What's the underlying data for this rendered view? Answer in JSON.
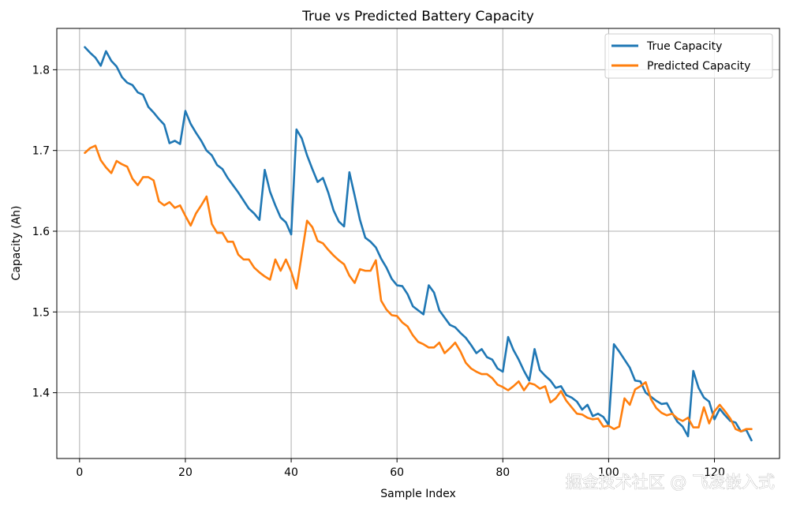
{
  "chart_data": {
    "type": "line",
    "title": "True vs Predicted Battery Capacity",
    "xlabel": "Sample Index",
    "ylabel": "Capacity (Ah)",
    "xlim": [
      -4.3,
      132.3
    ],
    "ylim": [
      1.3185,
      1.8512
    ],
    "x_ticks": [
      0,
      20,
      40,
      60,
      80,
      100,
      120
    ],
    "y_ticks": [
      1.4,
      1.5,
      1.6,
      1.7,
      1.8
    ],
    "x_tick_labels": [
      "0",
      "20",
      "40",
      "60",
      "80",
      "100",
      "120"
    ],
    "y_tick_labels": [
      "1.4",
      "1.5",
      "1.6",
      "1.7",
      "1.8"
    ],
    "grid": true,
    "legend_position": "top-right",
    "x": [
      1,
      2,
      3,
      4,
      5,
      6,
      7,
      8,
      9,
      10,
      11,
      12,
      13,
      14,
      15,
      16,
      17,
      18,
      19,
      20,
      21,
      22,
      23,
      24,
      25,
      26,
      27,
      28,
      29,
      30,
      31,
      32,
      33,
      34,
      35,
      36,
      37,
      38,
      39,
      40,
      41,
      42,
      43,
      44,
      45,
      46,
      47,
      48,
      49,
      50,
      51,
      52,
      53,
      54,
      55,
      56,
      57,
      58,
      59,
      60,
      61,
      62,
      63,
      64,
      65,
      66,
      67,
      68,
      69,
      70,
      71,
      72,
      73,
      74,
      75,
      76,
      77,
      78,
      79,
      80,
      81,
      82,
      83,
      84,
      85,
      86,
      87,
      88,
      89,
      90,
      91,
      92,
      93,
      94,
      95,
      96,
      97,
      98,
      99,
      100,
      101,
      102,
      103,
      104,
      105,
      106,
      107,
      108,
      109,
      110,
      111,
      112,
      113,
      114,
      115,
      116,
      117,
      118,
      119,
      120,
      121,
      122,
      123,
      124,
      125,
      126,
      127
    ],
    "series": [
      {
        "name": "True Capacity",
        "color": "#1f77b4",
        "values": [
          1.828,
          1.821,
          1.815,
          1.805,
          1.823,
          1.811,
          1.804,
          1.791,
          1.784,
          1.781,
          1.772,
          1.769,
          1.754,
          1.747,
          1.739,
          1.732,
          1.709,
          1.712,
          1.708,
          1.749,
          1.733,
          1.722,
          1.712,
          1.7,
          1.694,
          1.682,
          1.677,
          1.666,
          1.657,
          1.648,
          1.638,
          1.628,
          1.622,
          1.614,
          1.676,
          1.649,
          1.632,
          1.617,
          1.611,
          1.596,
          1.726,
          1.715,
          1.694,
          1.677,
          1.661,
          1.666,
          1.648,
          1.626,
          1.612,
          1.606,
          1.673,
          1.644,
          1.614,
          1.592,
          1.587,
          1.58,
          1.566,
          1.555,
          1.541,
          1.533,
          1.532,
          1.522,
          1.507,
          1.502,
          1.497,
          1.533,
          1.524,
          1.502,
          1.493,
          1.484,
          1.481,
          1.474,
          1.468,
          1.459,
          1.449,
          1.454,
          1.444,
          1.441,
          1.43,
          1.426,
          1.469,
          1.453,
          1.441,
          1.427,
          1.415,
          1.454,
          1.428,
          1.421,
          1.415,
          1.406,
          1.408,
          1.397,
          1.394,
          1.389,
          1.379,
          1.385,
          1.371,
          1.374,
          1.37,
          1.36,
          1.46,
          1.451,
          1.441,
          1.431,
          1.415,
          1.414,
          1.4,
          1.395,
          1.39,
          1.386,
          1.387,
          1.375,
          1.364,
          1.358,
          1.346,
          1.427,
          1.406,
          1.394,
          1.389,
          1.367,
          1.38,
          1.372,
          1.365,
          1.363,
          1.352,
          1.354,
          1.341
        ]
      },
      {
        "name": "Predicted Capacity",
        "color": "#ff7f0e",
        "values": [
          1.697,
          1.703,
          1.706,
          1.688,
          1.679,
          1.672,
          1.687,
          1.683,
          1.68,
          1.665,
          1.657,
          1.667,
          1.667,
          1.663,
          1.637,
          1.632,
          1.636,
          1.629,
          1.632,
          1.619,
          1.607,
          1.622,
          1.632,
          1.643,
          1.609,
          1.598,
          1.598,
          1.587,
          1.587,
          1.571,
          1.565,
          1.565,
          1.555,
          1.549,
          1.544,
          1.54,
          1.565,
          1.551,
          1.565,
          1.55,
          1.529,
          1.571,
          1.613,
          1.605,
          1.588,
          1.585,
          1.577,
          1.57,
          1.564,
          1.559,
          1.545,
          1.536,
          1.553,
          1.551,
          1.551,
          1.564,
          1.514,
          1.503,
          1.496,
          1.495,
          1.487,
          1.482,
          1.471,
          1.463,
          1.46,
          1.456,
          1.456,
          1.462,
          1.449,
          1.455,
          1.462,
          1.451,
          1.437,
          1.43,
          1.426,
          1.423,
          1.423,
          1.418,
          1.41,
          1.407,
          1.403,
          1.408,
          1.414,
          1.403,
          1.412,
          1.41,
          1.405,
          1.408,
          1.388,
          1.393,
          1.402,
          1.39,
          1.382,
          1.374,
          1.373,
          1.369,
          1.367,
          1.368,
          1.358,
          1.359,
          1.355,
          1.358,
          1.393,
          1.385,
          1.404,
          1.408,
          1.413,
          1.392,
          1.381,
          1.375,
          1.372,
          1.374,
          1.368,
          1.365,
          1.369,
          1.357,
          1.357,
          1.382,
          1.362,
          1.377,
          1.385,
          1.377,
          1.368,
          1.355,
          1.352,
          1.355,
          1.355
        ]
      }
    ]
  },
  "watermark": "掘金技术社区 @ 飞凌嵌入式"
}
